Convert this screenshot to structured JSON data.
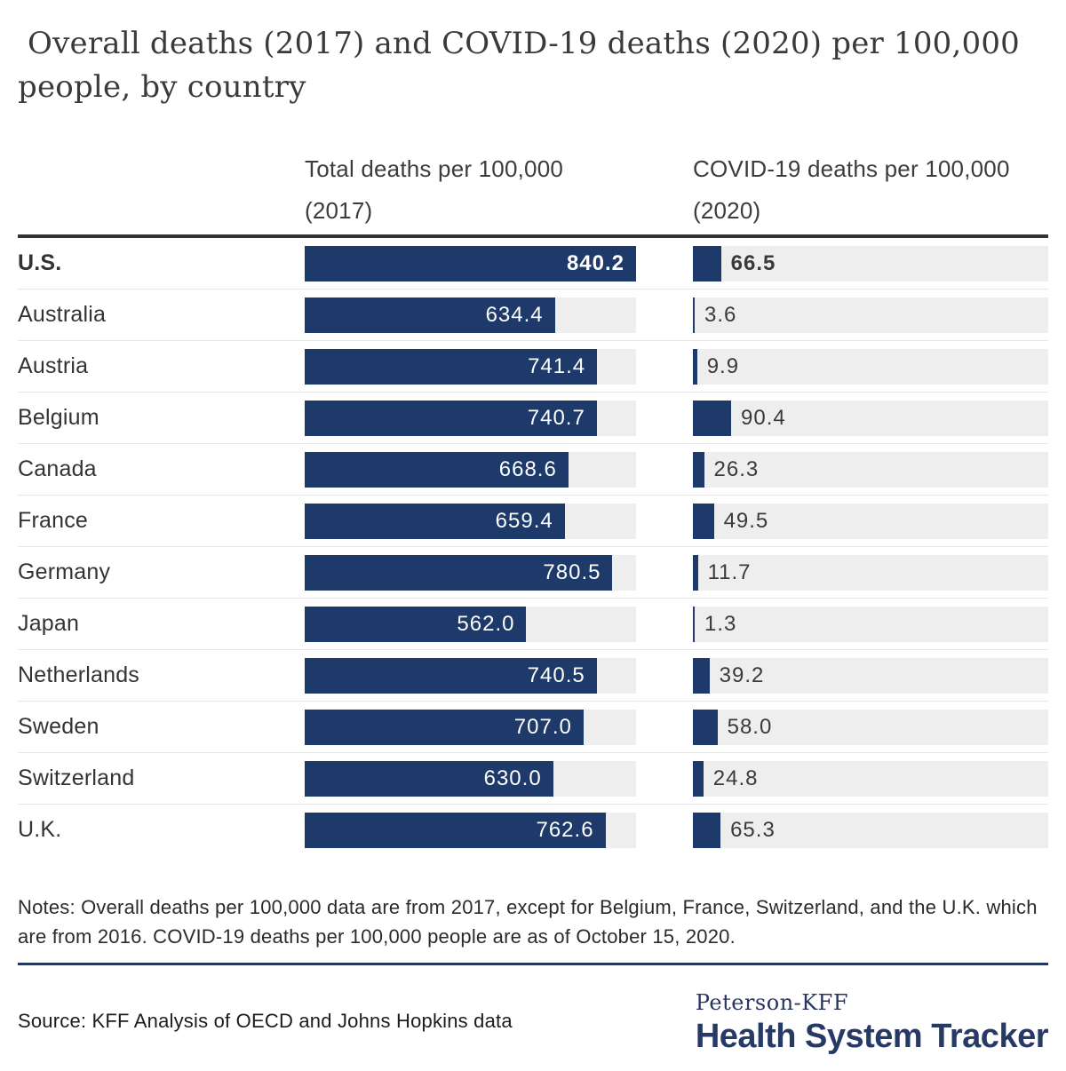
{
  "title": " Overall deaths (2017) and COVID-19 deaths (2020) per 100,000 people, by country",
  "columns": {
    "total": {
      "line1": "Total deaths per 100,000",
      "line2": "(2017)"
    },
    "covid": {
      "line1": "COVID-19 deaths per 100,000",
      "line2": "(2020)"
    }
  },
  "rows": [
    {
      "country": "U.S.",
      "total": "840.2",
      "covid": "66.5",
      "emphasis": true
    },
    {
      "country": "Australia",
      "total": "634.4",
      "covid": "3.6",
      "emphasis": false
    },
    {
      "country": "Austria",
      "total": "741.4",
      "covid": "9.9",
      "emphasis": false
    },
    {
      "country": "Belgium",
      "total": "740.7",
      "covid": "90.4",
      "emphasis": false
    },
    {
      "country": "Canada",
      "total": "668.6",
      "covid": "26.3",
      "emphasis": false
    },
    {
      "country": "France",
      "total": "659.4",
      "covid": "49.5",
      "emphasis": false
    },
    {
      "country": "Germany",
      "total": "780.5",
      "covid": "11.7",
      "emphasis": false
    },
    {
      "country": "Japan",
      "total": "562.0",
      "covid": "1.3",
      "emphasis": false
    },
    {
      "country": "Netherlands",
      "total": "740.5",
      "covid": "39.2",
      "emphasis": false
    },
    {
      "country": "Sweden",
      "total": "707.0",
      "covid": "58.0",
      "emphasis": false
    },
    {
      "country": "Switzerland",
      "total": "630.0",
      "covid": "24.8",
      "emphasis": false
    },
    {
      "country": "U.K.",
      "total": "762.6",
      "covid": "65.3",
      "emphasis": false
    }
  ],
  "notes": "Notes: Overall deaths per 100,000 data are from 2017, except for Belgium, France, Switzerland, and the U.K. which are from 2016. COVID-19 deaths per 100,000 people are as of October 15, 2020.",
  "source": "Source: KFF Analysis of OECD and Johns Hopkins data",
  "logo": {
    "brand_top": "Peterson-KFF",
    "brand_bottom": "Health System Tracker"
  },
  "colors": {
    "bar_navy": "#1e3a6b",
    "track_gray": "#eeeeee",
    "top_rule": "#333333",
    "navy_rule": "#24365c",
    "text_dark": "#333333"
  },
  "chart_data": {
    "type": "bar",
    "orientation": "horizontal",
    "title": "Overall deaths (2017) and COVID-19 deaths (2020) per 100,000 people, by country",
    "categories": [
      "U.S.",
      "Australia",
      "Austria",
      "Belgium",
      "Canada",
      "France",
      "Germany",
      "Japan",
      "Netherlands",
      "Sweden",
      "Switzerland",
      "U.K."
    ],
    "series": [
      {
        "name": "Total deaths per 100,000 (2017)",
        "values": [
          840.2,
          634.4,
          741.4,
          740.7,
          668.6,
          659.4,
          780.5,
          562.0,
          740.5,
          707.0,
          630.0,
          762.6
        ]
      },
      {
        "name": "COVID-19 deaths per 100,000 (2020)",
        "values": [
          66.5,
          3.6,
          9.9,
          90.4,
          26.3,
          49.5,
          11.7,
          1.3,
          39.2,
          58.0,
          24.8,
          65.3
        ]
      }
    ],
    "axis_max": 840.2,
    "value_labels": true,
    "grid": false,
    "legend_position": "column-headers",
    "highlighted_category": "U.S.",
    "notes": "Notes: Overall deaths per 100,000 data are from 2017, except for Belgium, France, Switzerland, and the U.K. which are from 2016. COVID-19 deaths per 100,000 people are as of October 15, 2020.",
    "source": "Source: KFF Analysis of OECD and Johns Hopkins data"
  }
}
